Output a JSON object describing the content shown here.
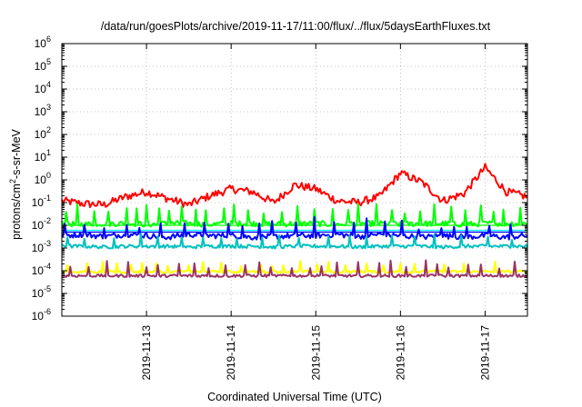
{
  "chart_data": {
    "type": "line",
    "title": "/data/run/goesPlots/archive/2019-11-17/11:00/flux/../flux/5daysEarthFluxes.txt",
    "xlabel": "Coordinated Universal Time (UTC)",
    "ylabel_parts": {
      "base": "protons/cm",
      "sup": "2",
      "rest": "-s-sr-MeV"
    },
    "x_axis": {
      "scale": "time",
      "range": [
        "2019-11-12 00:00",
        "2019-11-17 12:00"
      ],
      "ticks": [
        "2019-11-13",
        "2019-11-14",
        "2019-11-15",
        "2019-11-16",
        "2019-11-17"
      ],
      "tick_dates": [
        "2019-11-13 00:00",
        "2019-11-14 00:00",
        "2019-11-15 00:00",
        "2019-11-16 00:00",
        "2019-11-17 00:00"
      ]
    },
    "y_axis": {
      "scale": "log",
      "ylim": [
        1e-06,
        1000000
      ],
      "ticks": [
        {
          "base": "10",
          "exp": "-6"
        },
        {
          "base": "10",
          "exp": "-5"
        },
        {
          "base": "10",
          "exp": "-4"
        },
        {
          "base": "10",
          "exp": "-3"
        },
        {
          "base": "10",
          "exp": "-2"
        },
        {
          "base": "10",
          "exp": "-1"
        },
        {
          "base": "10",
          "exp": "0"
        },
        {
          "base": "10",
          "exp": "1"
        },
        {
          "base": "10",
          "exp": "2"
        },
        {
          "base": "10",
          "exp": "3"
        },
        {
          "base": "10",
          "exp": "4"
        },
        {
          "base": "10",
          "exp": "5"
        },
        {
          "base": "10",
          "exp": "6"
        }
      ]
    },
    "grid": true,
    "legend": "none",
    "x_days": [
      0,
      0.25,
      0.5,
      0.75,
      1.0,
      1.25,
      1.5,
      1.75,
      2.0,
      2.25,
      2.5,
      2.75,
      3.0,
      3.25,
      3.5,
      3.75,
      4.0,
      4.25,
      4.5,
      4.75,
      5.0,
      5.25,
      5.5
    ],
    "series": [
      {
        "color": "#ff0000",
        "noise": 0.35,
        "spike_every": 0,
        "spike_amp": 0,
        "values": [
          0.12,
          0.09,
          0.08,
          0.18,
          0.3,
          0.15,
          0.08,
          0.2,
          0.4,
          0.3,
          0.1,
          0.6,
          0.4,
          0.12,
          0.1,
          0.18,
          2.0,
          0.8,
          0.12,
          0.25,
          3.5,
          0.3,
          0.18
        ]
      },
      {
        "color": "#00ff00",
        "noise": 0.25,
        "spike_every": 7,
        "spike_amp": 0.7,
        "values": [
          0.012,
          0.011,
          0.012,
          0.012,
          0.011,
          0.012,
          0.012,
          0.011,
          0.012,
          0.012,
          0.011,
          0.012,
          0.012,
          0.011,
          0.012,
          0.012,
          0.011,
          0.012,
          0.012,
          0.011,
          0.012,
          0.012,
          0.012
        ]
      },
      {
        "color": "#0000ff",
        "noise": 0.25,
        "spike_every": 9,
        "spike_amp": 0.6,
        "values": [
          0.0035,
          0.004,
          0.0032,
          0.004,
          0.0035,
          0.003,
          0.004,
          0.0035,
          0.0035,
          0.003,
          0.0032,
          0.0035,
          0.0035,
          0.004,
          0.0032,
          0.004,
          0.0035,
          0.003,
          0.0035,
          0.003,
          0.0035,
          0.003,
          0.0035
        ]
      },
      {
        "color": "#00c0c0",
        "noise": 0.15,
        "spike_every": 11,
        "spike_amp": 0.5,
        "values": [
          0.0012,
          0.0012,
          0.0011,
          0.0012,
          0.0012,
          0.0012,
          0.0011,
          0.0012,
          0.0012,
          0.0012,
          0.0011,
          0.0012,
          0.0012,
          0.0012,
          0.0011,
          0.0012,
          0.0012,
          0.0012,
          0.0011,
          0.0012,
          0.0012,
          0.0012,
          0.0012
        ]
      },
      {
        "color": "#ffff00",
        "noise": 0.12,
        "spike_every": 8,
        "spike_amp": 0.4,
        "values": [
          9e-05,
          9e-05,
          9e-05,
          9e-05,
          9e-05,
          9e-05,
          9e-05,
          9e-05,
          9e-05,
          9e-05,
          9e-05,
          9e-05,
          9e-05,
          9e-05,
          9e-05,
          9e-05,
          9e-05,
          9e-05,
          9e-05,
          9e-05,
          9e-05,
          9e-05,
          9e-05
        ]
      },
      {
        "color": "#993366",
        "noise": 0.12,
        "spike_every": 8,
        "spike_amp": 0.55,
        "values": [
          6e-05,
          6e-05,
          6e-05,
          6e-05,
          6e-05,
          6e-05,
          6e-05,
          6e-05,
          6e-05,
          6e-05,
          6e-05,
          6e-05,
          6e-05,
          6e-05,
          6e-05,
          6e-05,
          6e-05,
          6e-05,
          6e-05,
          6e-05,
          6e-05,
          6e-05,
          6e-05
        ]
      }
    ],
    "ref_lines": [
      {
        "color": "#00ff00",
        "value": 0.01
      },
      {
        "color": "#00ffff",
        "value": 0.006
      },
      {
        "color": "#0000ff",
        "value": 0.005
      }
    ]
  }
}
